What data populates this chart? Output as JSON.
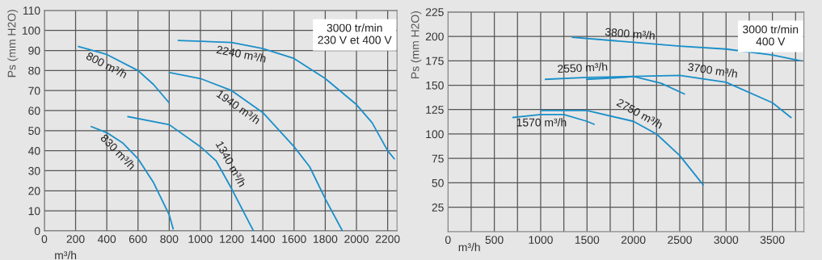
{
  "chart_data": [
    {
      "type": "line",
      "xlabel": "m³/h",
      "ylabel": "Ps (mm H2O)",
      "xlim": [
        0,
        2260
      ],
      "ylim": [
        0,
        110
      ],
      "xticks": [
        0,
        200,
        400,
        600,
        800,
        1000,
        1200,
        1400,
        1600,
        1800,
        2000,
        2200
      ],
      "yticks": [
        0,
        10,
        20,
        30,
        40,
        50,
        60,
        70,
        80,
        90,
        100,
        110
      ],
      "grid": true,
      "marker": "none",
      "line_style": "solid",
      "series": [
        {
          "name": "800 m³/h",
          "color": "#1a8fc9",
          "x": [
            219,
            400,
            600,
            700,
            798
          ],
          "values": [
            92,
            88,
            80,
            73,
            64
          ]
        },
        {
          "name": "2240 m³/h",
          "color": "#1a8fc9",
          "x": [
            859,
            1200,
            1400,
            1600,
            1800,
            2000,
            2100,
            2200,
            2242
          ],
          "values": [
            95,
            94,
            91,
            86,
            76,
            63,
            54,
            40,
            36
          ]
        },
        {
          "name": "1940 m³/h",
          "color": "#1a8fc9",
          "x": [
            802,
            1000,
            1200,
            1400,
            1600,
            1700,
            1800,
            1910
          ],
          "values": [
            79,
            76,
            70,
            59,
            42,
            32,
            16,
            0
          ]
        },
        {
          "name": "1340 m³/h",
          "color": "#1a8fc9",
          "x": [
            536,
            800,
            1000,
            1100,
            1200,
            1300,
            1340
          ],
          "values": [
            57,
            53,
            42,
            35,
            21,
            6,
            0
          ]
        },
        {
          "name": "830 m³/h",
          "color": "#1a8fc9",
          "x": [
            301,
            400,
            500,
            600,
            700,
            800,
            825
          ],
          "values": [
            52,
            49,
            44,
            36,
            24,
            8,
            1
          ]
        }
      ],
      "annotations": [
        "3000 tr/min\n230 V et 400 V"
      ]
    },
    {
      "type": "line",
      "xlabel": "m³/h",
      "ylabel": "Ps (mm H2O)",
      "xlim": [
        0,
        3840
      ],
      "ylim": [
        0,
        225
      ],
      "xticks": [
        0,
        {
          "value": 250,
          "label": null
        },
        500,
        {
          "value": 750,
          "label": null
        },
        1000,
        {
          "value": 1250,
          "label": null
        },
        1500,
        {
          "value": 1750,
          "label": null
        },
        2000,
        {
          "value": 2250,
          "label": null
        },
        2500,
        {
          "value": 2750,
          "label": null
        },
        3000,
        {
          "value": 3250,
          "label": null
        },
        3500,
        {
          "value": 3750,
          "label": null
        }
      ],
      "yticks": [
        25,
        50,
        75,
        100,
        125,
        150,
        175,
        200,
        225
      ],
      "grid": true,
      "marker": "none",
      "line_style": "solid",
      "series": [
        {
          "name": "3800 m³/h",
          "color": "#1a8fc9",
          "x": [
            1343,
            2000,
            2500,
            3000,
            3500,
            3800
          ],
          "values": [
            199,
            194,
            190,
            187,
            181,
            175
          ]
        },
        {
          "name": "3700 m³/h",
          "color": "#1a8fc9",
          "x": [
            1497,
            1900,
            2000,
            2500,
            3000,
            3500,
            3700
          ],
          "values": [
            156,
            158,
            159,
            160,
            153,
            132,
            117
          ]
        },
        {
          "name": "2550 m³/h",
          "color": "#1a8fc9",
          "x": [
            1052,
            1500,
            2000,
            2300,
            2550
          ],
          "values": [
            156,
            158,
            159,
            152,
            141
          ]
        },
        {
          "name": "2750 m³/h",
          "color": "#1a8fc9",
          "x": [
            1003,
            1500,
            2000,
            2250,
            2500,
            2753
          ],
          "values": [
            124,
            124,
            113,
            100,
            78,
            48
          ]
        },
        {
          "name": "1570 m³/h",
          "color": "#1a8fc9",
          "x": [
            703,
            1000,
            1250,
            1500,
            1576
          ],
          "values": [
            117,
            120,
            120,
            113,
            110
          ]
        }
      ],
      "annotations": [
        "3000 tr/min\n400 V"
      ]
    }
  ]
}
